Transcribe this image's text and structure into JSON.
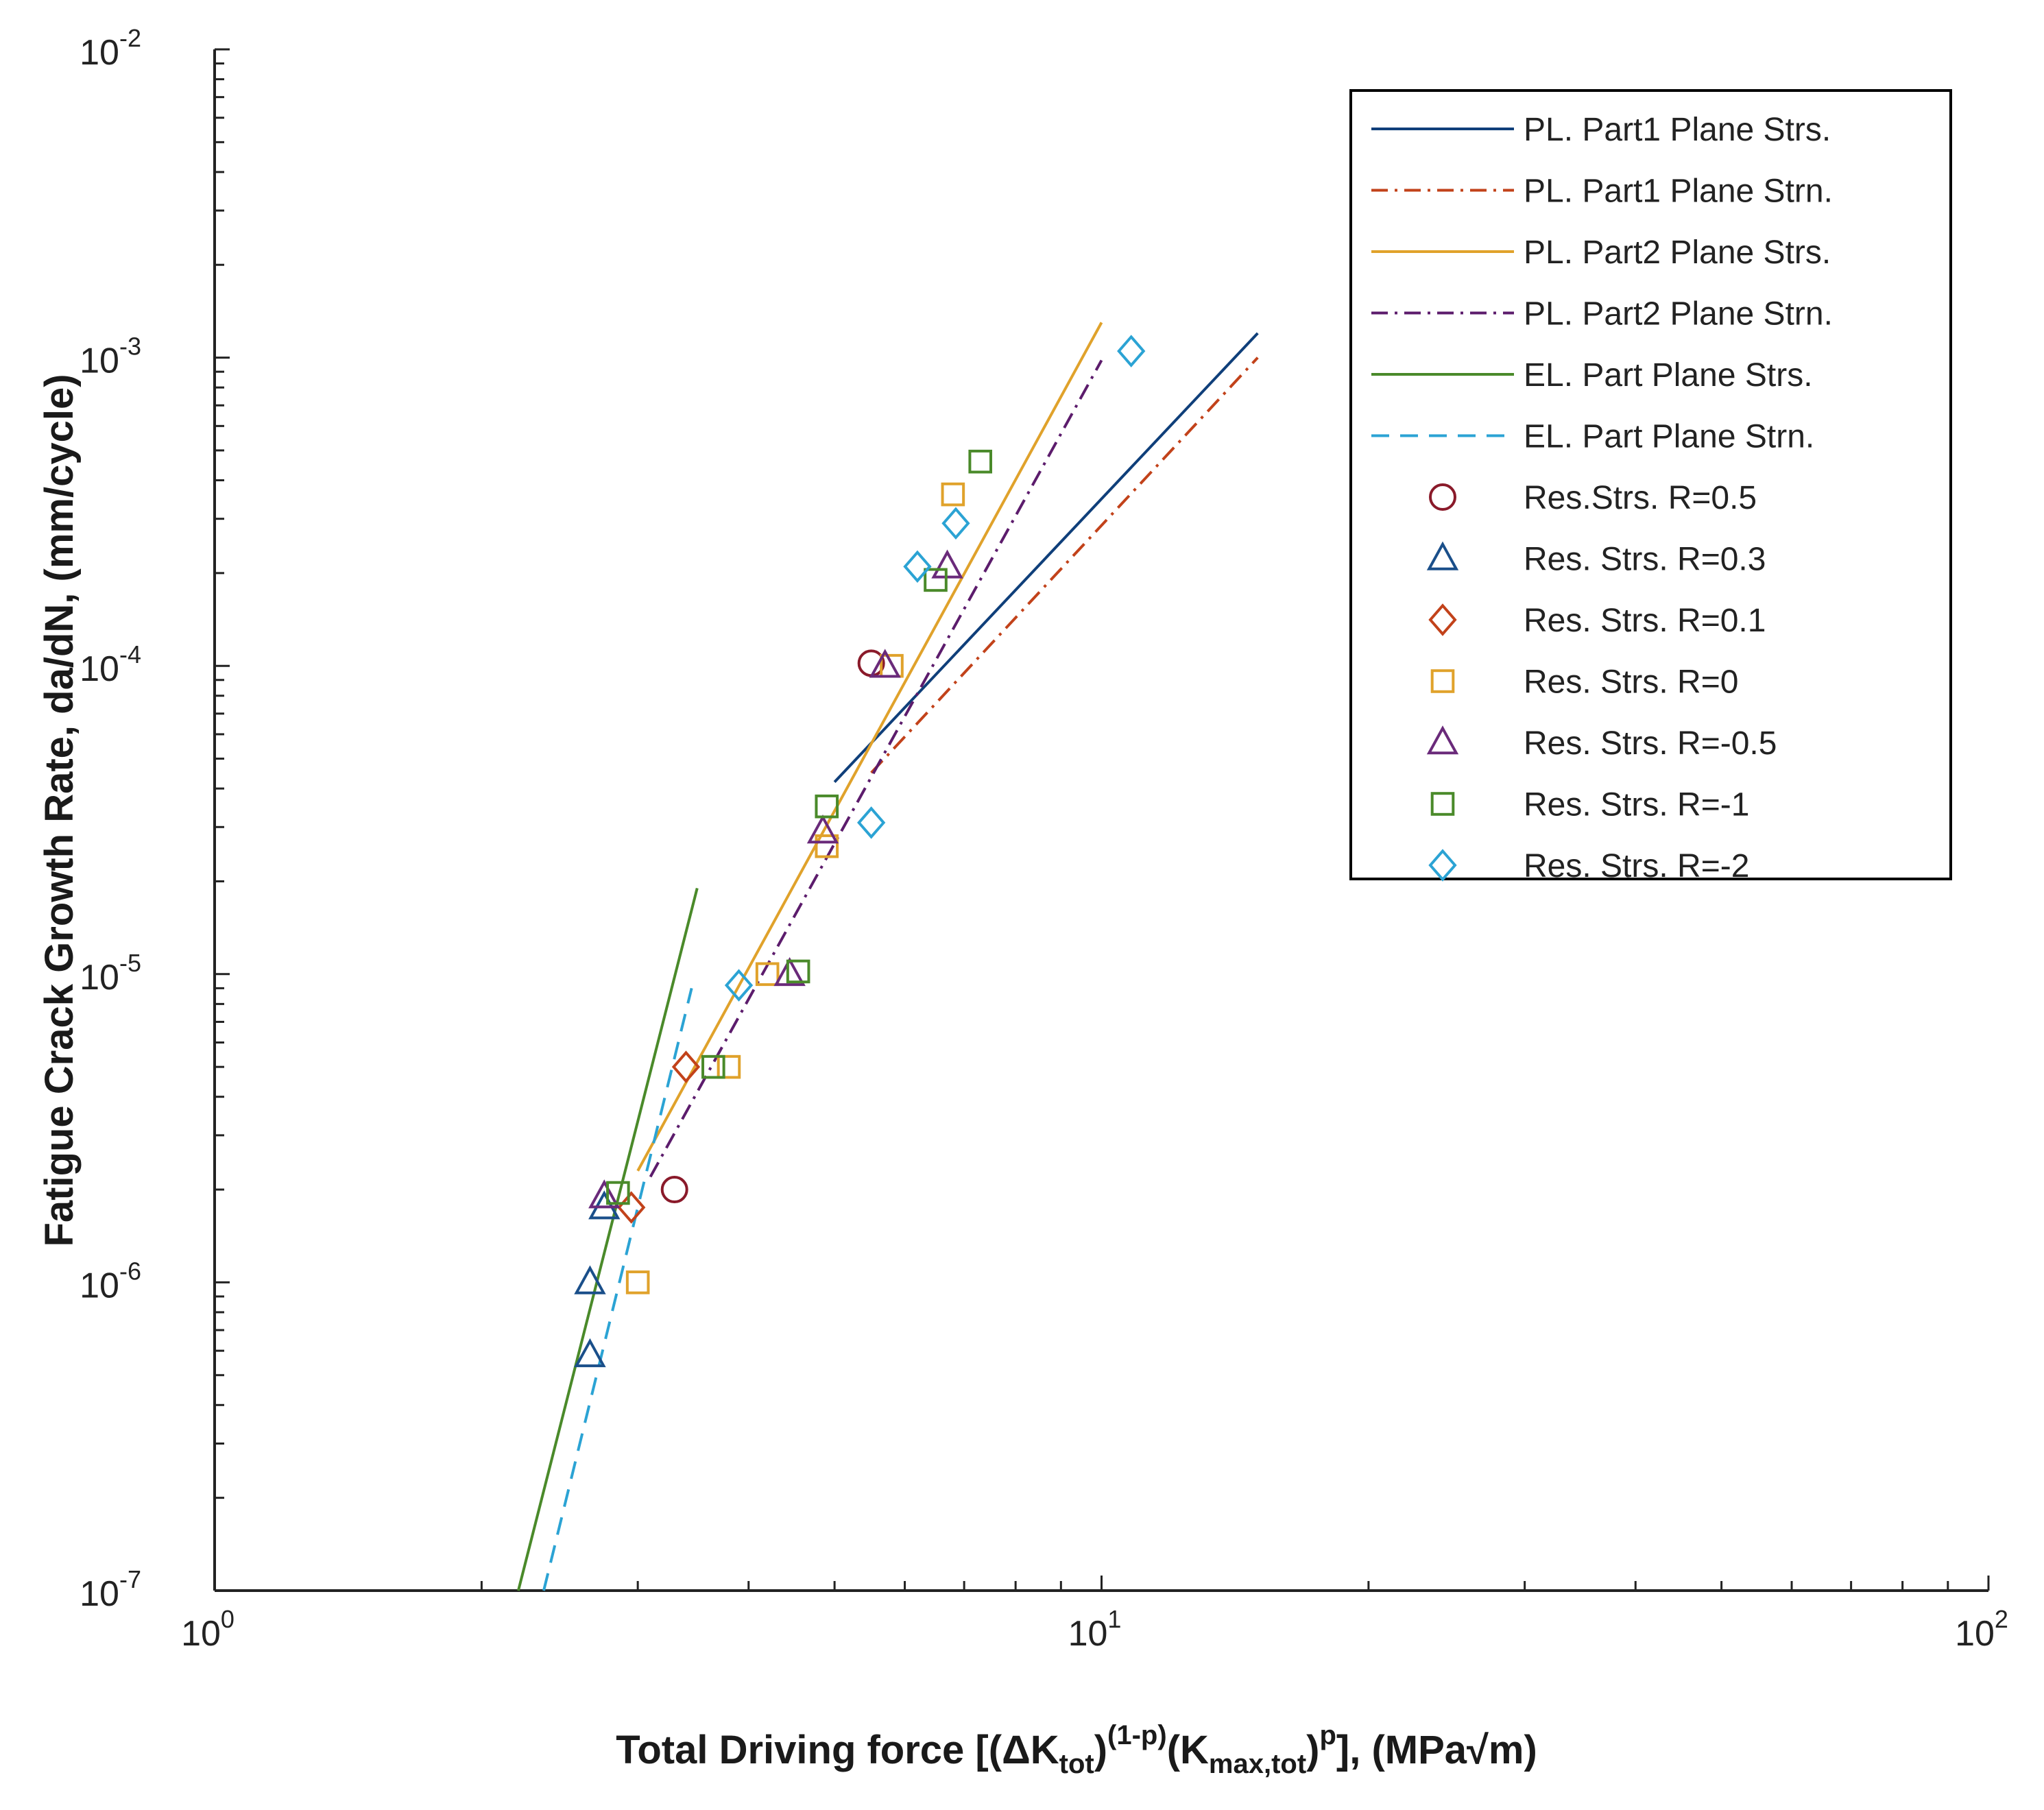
{
  "chart_data": {
    "type": "scatter",
    "x_scale": "log",
    "y_scale": "log",
    "xlim": [
      1,
      100
    ],
    "ylim": [
      1e-07,
      0.01
    ],
    "xlabel": {
      "prefix": "Total Driving force [(",
      "delta": "Δ",
      "k1": "K",
      "k1_sub": "tot",
      "paren_close_1": ")",
      "sup1": "(1-p)",
      "paren_open_2": "(K",
      "k2_sub": "max,tot",
      "paren_close_2": ")",
      "sup2": "p",
      "suffix": "], (MPa",
      "sqrt": "√",
      "unit_end": "m)"
    },
    "ylabel": "Fatigue Crack Growth Rate, da/dN, (mm/cycle)",
    "x_ticks": [
      {
        "value": 1,
        "base": "10",
        "exp": "0"
      },
      {
        "value": 10,
        "base": "10",
        "exp": "1"
      },
      {
        "value": 100,
        "base": "10",
        "exp": "2"
      }
    ],
    "y_ticks": [
      {
        "value": 1e-07,
        "base": "10",
        "exp": "-7"
      },
      {
        "value": 1e-06,
        "base": "10",
        "exp": "-6"
      },
      {
        "value": 1e-05,
        "base": "10",
        "exp": "-5"
      },
      {
        "value": 0.0001,
        "base": "10",
        "exp": "-4"
      },
      {
        "value": 0.001,
        "base": "10",
        "exp": "-3"
      },
      {
        "value": 0.01,
        "base": "10",
        "exp": "-2"
      }
    ],
    "legend_position": "top-right",
    "lines": [
      {
        "name": "PL. Part1 Plane Strs.",
        "color": "#0f3f7a",
        "dash": "solid",
        "x": [
          5.0,
          15.0
        ],
        "y": [
          4.2e-05,
          0.0012
        ]
      },
      {
        "name": "PL. Part1 Plane Strn.",
        "color": "#c2421a",
        "dash": "dashdot",
        "x": [
          5.5,
          15.0
        ],
        "y": [
          4.5e-05,
          0.001
        ]
      },
      {
        "name": "PL. Part2 Plane Strs.",
        "color": "#e0a22b",
        "dash": "solid",
        "x": [
          3.0,
          10.0
        ],
        "y": [
          2.3e-06,
          0.0013
        ]
      },
      {
        "name": "PL. Part2 Plane Strn.",
        "color": "#5c1c6c",
        "dash": "dashdot",
        "x": [
          3.1,
          10.0
        ],
        "y": [
          2.2e-06,
          0.00098
        ]
      },
      {
        "name": "EL. Part Plane Strs.",
        "color": "#4a8a2a",
        "dash": "solid",
        "x": [
          2.2,
          3.5
        ],
        "y": [
          1e-07,
          1.9e-05
        ]
      },
      {
        "name": "EL. Part Plane Strn.",
        "color": "#2ba3d4",
        "dash": "dashed",
        "x": [
          2.35,
          3.45
        ],
        "y": [
          1e-07,
          9e-06
        ]
      }
    ],
    "series": [
      {
        "name": "Res.Strs. R=0.5",
        "marker": "circle",
        "color": "#8a1a2a",
        "points": [
          [
            3.3,
            2e-06
          ],
          [
            5.5,
            0.000102
          ]
        ]
      },
      {
        "name": "Res. Strs. R=0.3",
        "marker": "triangle",
        "color": "#1a4f8a",
        "points": [
          [
            2.65,
            5.8e-07
          ],
          [
            2.65,
            1e-06
          ],
          [
            2.75,
            1.75e-06
          ]
        ]
      },
      {
        "name": "Res. Strs. R=0.1",
        "marker": "diamond",
        "color": "#c2421a",
        "points": [
          [
            2.95,
            1.75e-06
          ],
          [
            3.4,
            5e-06
          ]
        ]
      },
      {
        "name": "Res. Strs. R=0",
        "marker": "square",
        "color": "#e0a22b",
        "points": [
          [
            3.0,
            1e-06
          ],
          [
            3.8,
            5e-06
          ],
          [
            4.2,
            1e-05
          ],
          [
            4.9,
            2.6e-05
          ],
          [
            5.8,
            0.0001
          ],
          [
            6.8,
            0.00036
          ]
        ]
      },
      {
        "name": "Res. Strs. R=-0.5",
        "marker": "triangle",
        "color": "#6a2a7a",
        "points": [
          [
            2.75,
            1.9e-06
          ],
          [
            4.45,
            1e-05
          ],
          [
            4.85,
            2.9e-05
          ],
          [
            5.7,
            0.0001
          ],
          [
            6.7,
            0.00021
          ]
        ]
      },
      {
        "name": "Res. Strs. R=-1",
        "marker": "square",
        "color": "#4a8a2a",
        "points": [
          [
            2.85,
            1.95e-06
          ],
          [
            3.65,
            5e-06
          ],
          [
            4.55,
            1.02e-05
          ],
          [
            4.9,
            3.5e-05
          ],
          [
            6.5,
            0.00019
          ],
          [
            7.3,
            0.00046
          ]
        ]
      },
      {
        "name": "Res. Strs. R=-2",
        "marker": "diamond",
        "color": "#2ba3d4",
        "points": [
          [
            3.9,
            9.2e-06
          ],
          [
            5.5,
            3.1e-05
          ],
          [
            6.2,
            0.00021
          ],
          [
            6.85,
            0.00029
          ],
          [
            10.8,
            0.00105
          ]
        ]
      }
    ]
  }
}
